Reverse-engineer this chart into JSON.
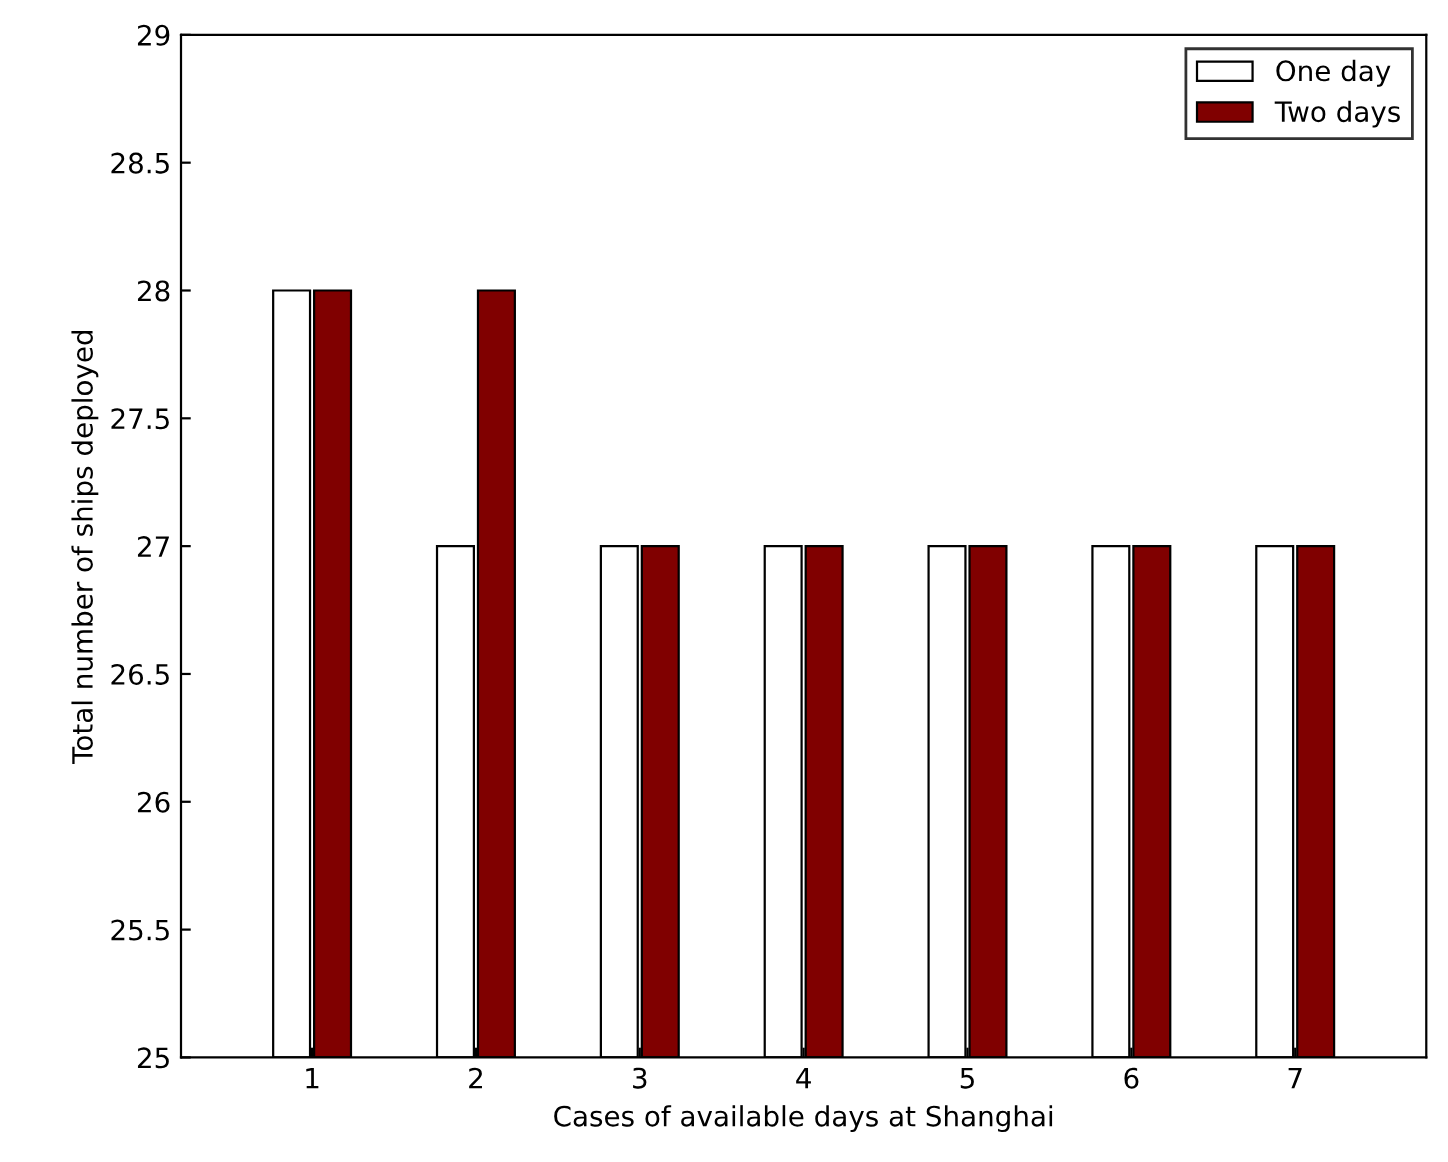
{
  "chart_data": {
    "type": "bar",
    "xlabel": "Cases of available days at Shanghai",
    "ylabel": "Total number of ships deployed",
    "categories": [
      "1",
      "2",
      "3",
      "4",
      "5",
      "6",
      "7"
    ],
    "series": [
      {
        "name": "One day",
        "color": "#ffffff",
        "values": [
          28,
          27,
          27,
          27,
          27,
          27,
          27
        ]
      },
      {
        "name": "Two days",
        "color": "#800000",
        "values": [
          28,
          28,
          27,
          27,
          27,
          27,
          27
        ]
      }
    ],
    "ylim": [
      25,
      29
    ],
    "yticks": [
      25,
      25.5,
      26,
      26.5,
      27,
      27.5,
      28,
      28.5,
      29
    ],
    "grid": false,
    "legend": "top right"
  }
}
